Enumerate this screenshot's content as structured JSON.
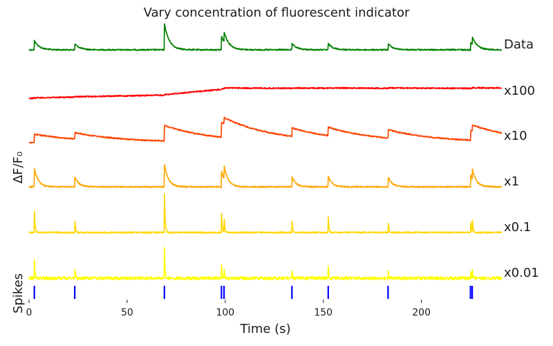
{
  "chart_data": {
    "type": "line",
    "title": "Vary concentration of fluorescent indicator",
    "xlabel": "Time (s)",
    "ylabel": "ΔF/F₀",
    "spikes_label": "Spikes",
    "xlim": [
      0,
      241
    ],
    "x_ticks": [
      0,
      50,
      100,
      150,
      200
    ],
    "x_tick_labels": [
      "0",
      "50",
      "100",
      "150",
      "200"
    ],
    "grid": false,
    "legend": "right-side trace labels",
    "spike_times": [
      2.7,
      23.3,
      69.0,
      98.1,
      99.4,
      134.0,
      152.5,
      183.0,
      225.0,
      225.9
    ],
    "spike_color": "#0000ff",
    "series": [
      {
        "name": "Data",
        "color": "#008000",
        "kind": "measured",
        "baseline": 0.0,
        "peaks": [
          0.9,
          0.6,
          2.5,
          1.3,
          1.0,
          0.6,
          0.6,
          0.6,
          0.8,
          0.7
        ],
        "tau": 2.5,
        "trend": []
      },
      {
        "name": "x100",
        "color": "#ff0000",
        "kind": "slow",
        "baseline": 0.0,
        "peaks": [
          0.03,
          0.03,
          0.05,
          0.05,
          0.05,
          0.03,
          0.03,
          0.03,
          0.03,
          0.03
        ],
        "tau": 300,
        "trend": [
          [
            0,
            0.0
          ],
          [
            69,
            0.25
          ],
          [
            100,
            0.8
          ],
          [
            241,
            0.75
          ]
        ]
      },
      {
        "name": "x10",
        "color": "#ff4500",
        "kind": "medium",
        "baseline": 0.0,
        "peaks": [
          0.8,
          0.6,
          1.5,
          1.4,
          0.6,
          0.8,
          0.8,
          0.8,
          0.9,
          0.6
        ],
        "tau": 25,
        "trend": []
      },
      {
        "name": "x1",
        "color": "#ffa500",
        "kind": "fast",
        "baseline": 0.0,
        "peaks": [
          1.8,
          1.0,
          2.2,
          1.5,
          1.3,
          1.0,
          1.0,
          1.0,
          1.2,
          1.0
        ],
        "tau": 2.0,
        "trend": []
      },
      {
        "name": "x0.1",
        "color": "#ffd700",
        "kind": "faster",
        "baseline": 0.0,
        "peaks": [
          2.4,
          1.6,
          4.0,
          2.0,
          1.7,
          1.5,
          1.5,
          1.5,
          1.5,
          1.5
        ],
        "tau": 0.35,
        "trend": []
      },
      {
        "name": "x0.01",
        "color": "#ffff00",
        "kind": "fastest",
        "baseline": 0.0,
        "peaks": [
          2.5,
          1.5,
          4.3,
          1.6,
          1.8,
          1.5,
          1.6,
          1.5,
          1.5,
          1.5
        ],
        "tau": 0.25,
        "trend": []
      }
    ]
  }
}
